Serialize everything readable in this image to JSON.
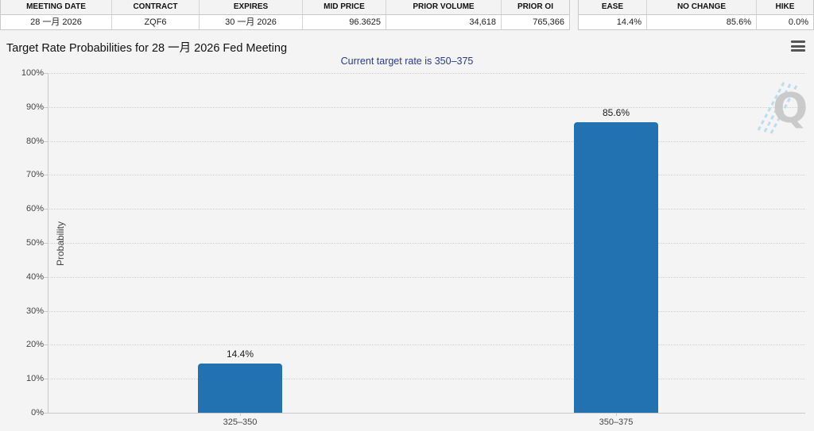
{
  "tables": {
    "contract_table": {
      "headers": [
        "MEETING DATE",
        "CONTRACT",
        "EXPIRES",
        "MID PRICE",
        "PRIOR VOLUME",
        "PRIOR OI"
      ],
      "values": [
        "28 一月 2026",
        "ZQF6",
        "30 一月 2026",
        "96.3625",
        "34,618",
        "765,366"
      ]
    },
    "probability_table": {
      "headers": [
        "EASE",
        "NO CHANGE",
        "HIKE"
      ],
      "values": [
        "14.4%",
        "85.6%",
        "0.0%"
      ]
    }
  },
  "chart_data": {
    "type": "bar",
    "title": "Target Rate Probabilities for 28 一月 2026 Fed Meeting",
    "subtitle": "Current target rate is 350–375",
    "categories": [
      "325–350",
      "350–375"
    ],
    "values": [
      14.4,
      85.6
    ],
    "bar_labels": [
      "14.4%",
      "85.6%"
    ],
    "xlabel": "",
    "ylabel": "Probability",
    "ylim": [
      0,
      100
    ],
    "yticks": [
      "0%",
      "10%",
      "20%",
      "30%",
      "40%",
      "50%",
      "60%",
      "70%",
      "80%",
      "90%",
      "100%"
    ],
    "grid": "dotted horizontal",
    "legend": "none",
    "bar_color": "#2271b0"
  },
  "icons": {
    "menu": "hamburger-menu",
    "watermark": "Q-logo"
  },
  "colors": {
    "bar": "#2271b0",
    "subtitle_text": "#293a8d",
    "page_bg": "#f4f4f5",
    "gridline": "#cfcfcf",
    "axis": "#c9c9c9"
  }
}
